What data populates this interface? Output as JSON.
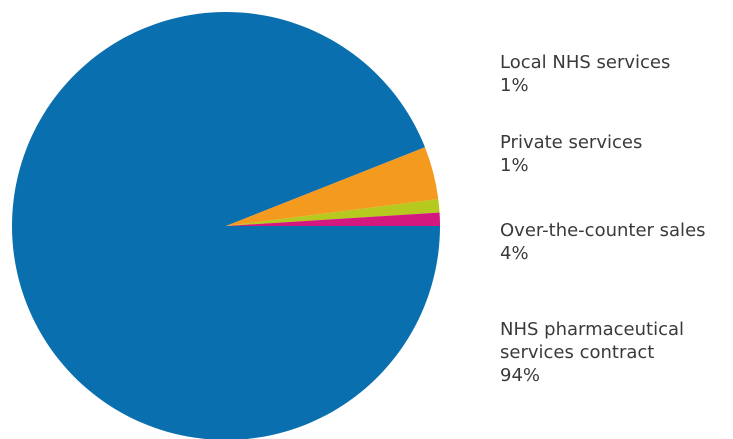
{
  "chart_data": {
    "type": "pie",
    "title": "",
    "slices": [
      {
        "label": "NHS pharmaceutical services contract",
        "value_text": "94%",
        "value": 94,
        "color": "#0a6faf"
      },
      {
        "label": "Over-the-counter sales",
        "value_text": "4%",
        "value": 4,
        "color": "#f49a1f"
      },
      {
        "label": "Private services",
        "value_text": "1%",
        "value": 1,
        "color": "#b6c91f"
      },
      {
        "label": "Local NHS services",
        "value_text": "1%",
        "value": 1,
        "color": "#d3197f"
      }
    ],
    "legend_placement": "right"
  },
  "legend": [
    {
      "lines": [
        "Local NHS services"
      ],
      "value": "1%"
    },
    {
      "lines": [
        "Private services"
      ],
      "value": "1%"
    },
    {
      "lines": [
        "Over-the-counter sales"
      ],
      "value": "4%"
    },
    {
      "lines": [
        "NHS pharmaceutical",
        "services contract"
      ],
      "value": "94%"
    }
  ]
}
